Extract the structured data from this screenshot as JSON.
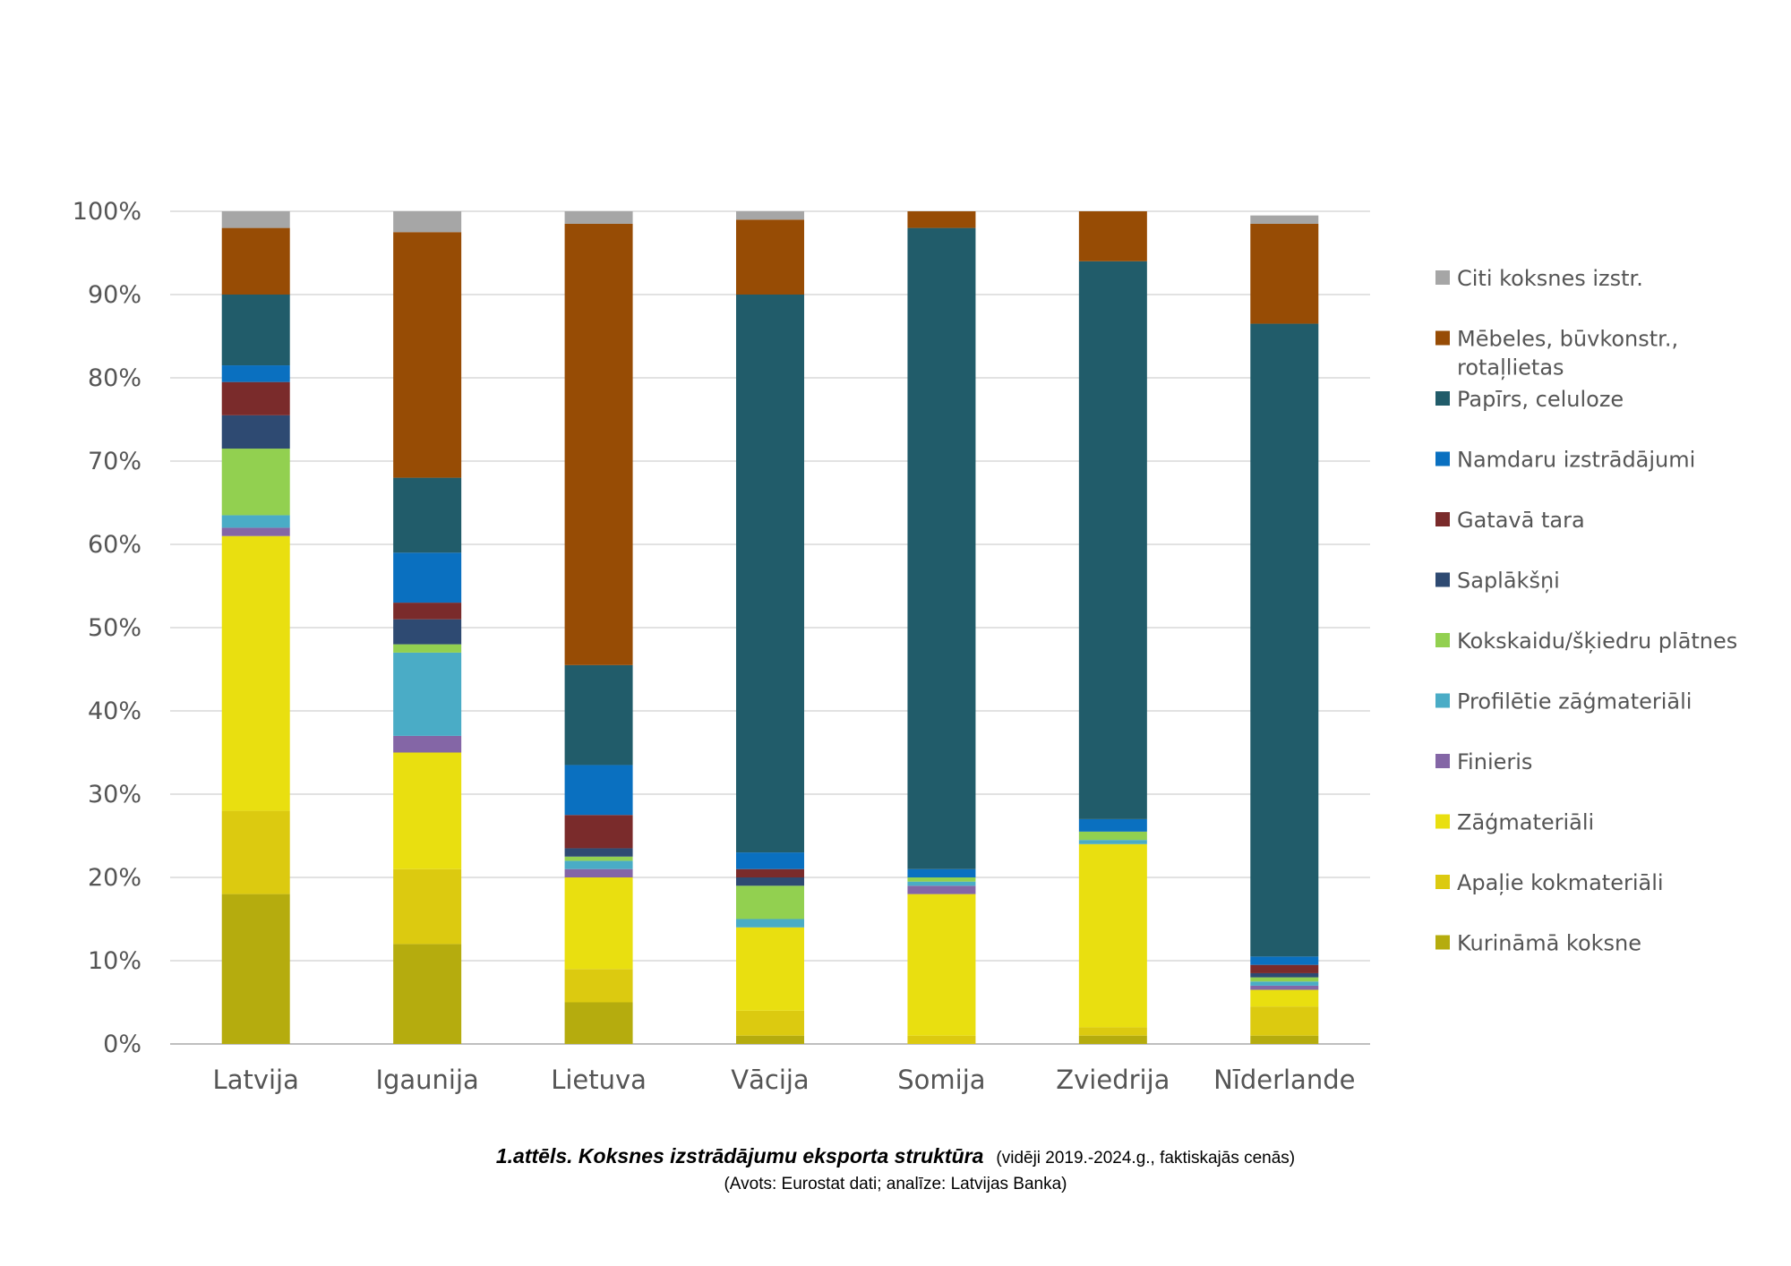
{
  "chart_data": {
    "type": "bar",
    "stacked": true,
    "percent": true,
    "ylim": [
      0,
      100
    ],
    "yticks": [
      "0%",
      "10%",
      "20%",
      "30%",
      "40%",
      "50%",
      "60%",
      "70%",
      "80%",
      "90%",
      "100%"
    ],
    "grid": true,
    "legend_position": "right",
    "categories": [
      "Latvija",
      "Igaunija",
      "Lietuva",
      "Vācija",
      "Somija",
      "Zviedrija",
      "Nīderlande"
    ],
    "series": [
      {
        "name": "Kurināmā koksne",
        "color": "#b5ac0e",
        "values": [
          18,
          12,
          5,
          1,
          0,
          1,
          1
        ]
      },
      {
        "name": "Apaļie kokmateriāli",
        "color": "#dcca10",
        "values": [
          10,
          9,
          4,
          3,
          1,
          1,
          3.5
        ]
      },
      {
        "name": "Zāģmateriāli",
        "color": "#e9df10",
        "values": [
          33,
          14,
          11,
          10,
          17,
          22,
          2
        ]
      },
      {
        "name": "Finieris",
        "color": "#8466a6",
        "values": [
          1,
          2,
          1,
          0,
          1,
          0,
          0.5
        ]
      },
      {
        "name": "Profilētie zāģmateriāli",
        "color": "#4aacc6",
        "values": [
          1.5,
          10,
          1,
          1,
          0.5,
          0.5,
          0.5
        ]
      },
      {
        "name": "Kokskaidu/šķiedru plātnes",
        "color": "#92d050",
        "values": [
          8,
          1,
          0.5,
          4,
          0.5,
          1,
          0.5
        ]
      },
      {
        "name": "Saplākšņi",
        "color": "#2e4a72",
        "values": [
          4,
          3,
          1,
          1,
          0,
          0,
          0.5
        ]
      },
      {
        "name": "Gatavā tara",
        "color": "#7a2b2b",
        "values": [
          4,
          2,
          4,
          1,
          0,
          0,
          1
        ]
      },
      {
        "name": "Namdaru izstrādājumi",
        "color": "#0a70c0",
        "values": [
          2,
          6,
          6,
          2,
          1,
          1.5,
          1
        ]
      },
      {
        "name": "Papīrs, celuloze",
        "color": "#215c6a",
        "values": [
          8.5,
          9,
          12,
          67,
          77,
          67,
          76
        ]
      },
      {
        "name": "Mēbeles, būvkonstr., rotaļlietas",
        "color": "#974c05",
        "values": [
          8,
          29.5,
          53,
          9,
          2,
          6,
          12
        ]
      },
      {
        "name": "Citi koksnes izstr.",
        "color": "#a6a6a6",
        "values": [
          2,
          2.5,
          1.5,
          1,
          0,
          0,
          1
        ]
      }
    ]
  },
  "caption": {
    "title": "1.attēls. Koksnes izstrādājumu eksporta struktūra",
    "note": "(vidēji 2019.-2024.g., faktiskajās cenās)",
    "source": "(Avots: Eurostat dati; analīze: Latvijas Banka)"
  }
}
